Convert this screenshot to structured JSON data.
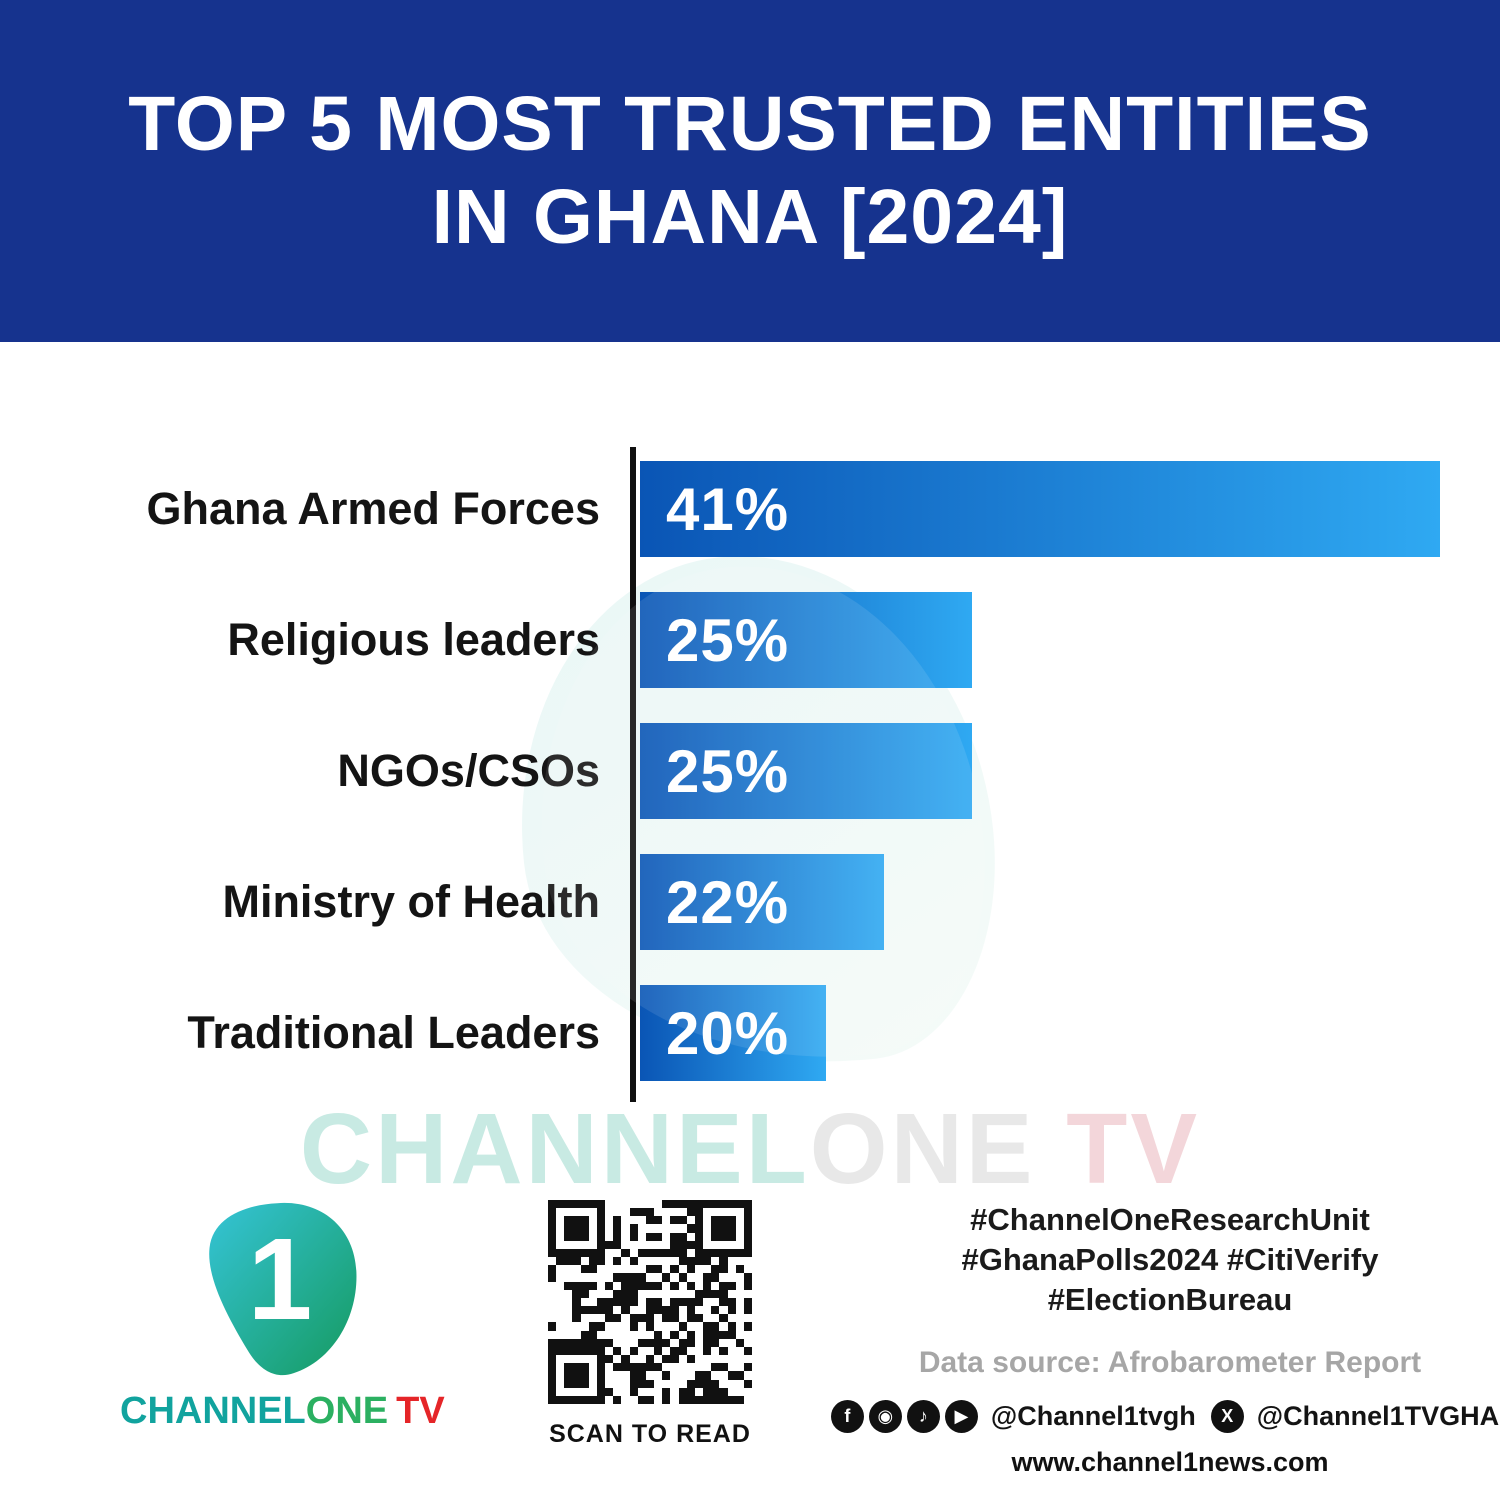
{
  "header": {
    "title_line1": "TOP 5 MOST TRUSTED ENTITIES",
    "title_line2": "IN GHANA [2024]",
    "bg_color": "#16338E"
  },
  "chart_data": {
    "type": "bar",
    "orientation": "horizontal",
    "title": "TOP 5 MOST TRUSTED ENTITIES IN GHANA [2024]",
    "categories": [
      "Ghana Armed Forces",
      "Religious leaders",
      "NGOs/CSOs",
      "Ministry of Health",
      "Traditional Leaders"
    ],
    "values": [
      41,
      25,
      25,
      22,
      20
    ],
    "value_labels": [
      "41%",
      "25%",
      "25%",
      "22%",
      "20%"
    ],
    "xlim": [
      0,
      41
    ],
    "grid": false,
    "legend": "none",
    "bar_color_start": "#0A55B5",
    "bar_color_end": "#2FA9F2",
    "bar_render_widths_pct": [
      100,
      41.5,
      41.5,
      30.5,
      23.2
    ]
  },
  "watermark": {
    "channel": "CHANNEL",
    "one": "ONE",
    "tv": "TV"
  },
  "footer": {
    "logo": {
      "mark_number": "1",
      "brand_channel": "CHANNEL",
      "brand_one": "ONE",
      "brand_tv": "TV"
    },
    "qr_caption": "SCAN TO READ",
    "hashtags_line1": "#ChannelOneResearchUnit",
    "hashtags_line2": "#GhanaPolls2024 #CitiVerify",
    "hashtags_line3": "#ElectionBureau",
    "data_source": "Data source: Afrobarometer Report",
    "social": {
      "facebook_icon": "f",
      "instagram_icon": "◉",
      "tiktok_icon": "♪",
      "youtube_icon": "▶",
      "x_icon": "X",
      "handle1": "@Channel1tvgh",
      "handle2": "@Channel1TVGHA"
    },
    "website": "www.channel1news.com"
  }
}
